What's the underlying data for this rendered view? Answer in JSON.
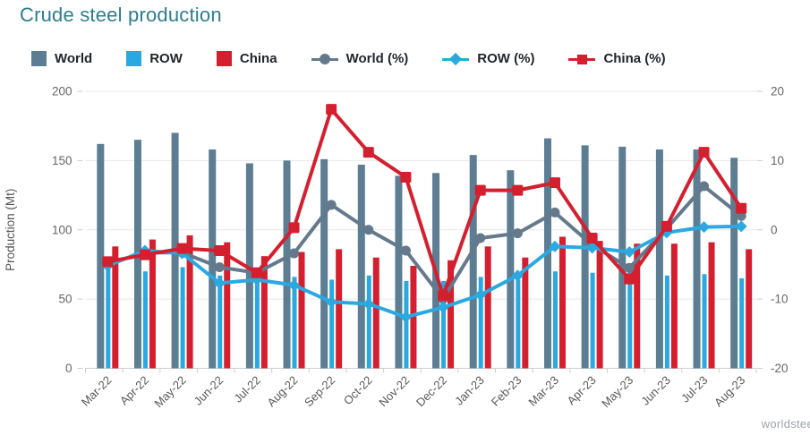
{
  "title": "Crude steel production",
  "watermark": "worldstee",
  "legend": [
    {
      "label": "World",
      "type": "square",
      "color": "#5d7d92"
    },
    {
      "label": "ROW",
      "type": "square",
      "color": "#2aa9e0"
    },
    {
      "label": "China",
      "type": "square",
      "color": "#d41f2f"
    },
    {
      "label": "World (%)",
      "type": "line-circle",
      "color": "#64798b"
    },
    {
      "label": "ROW (%)",
      "type": "line-diamond",
      "color": "#2aa9e0"
    },
    {
      "label": "China (%)",
      "type": "line-square",
      "color": "#d41f2f"
    }
  ],
  "chart_data": {
    "type": "bar",
    "subtype": "bar-line-combo",
    "title": "Crude steel production",
    "categories": [
      "Mar-22",
      "Apr-22",
      "May-22",
      "Jun-22",
      "Jul-22",
      "Aug-22",
      "Sep-22",
      "Oct-22",
      "Nov-22",
      "Dec-22",
      "Jan-23",
      "Feb-23",
      "Mar-23",
      "Apr-23",
      "May-23",
      "Jun-23",
      "Jul-23",
      "Aug-23"
    ],
    "bar_series": [
      {
        "name": "World",
        "color": "#5d7d92",
        "axis": "left",
        "values": [
          162,
          165,
          170,
          158,
          148,
          150,
          151,
          147,
          139,
          141,
          154,
          143,
          166,
          161,
          160,
          158,
          158,
          152
        ]
      },
      {
        "name": "ROW",
        "color": "#2aa9e0",
        "axis": "left",
        "values": [
          73,
          70,
          73,
          67,
          66,
          66,
          64,
          67,
          63,
          63,
          66,
          64,
          70,
          69,
          71,
          67,
          68,
          65
        ]
      },
      {
        "name": "China",
        "color": "#d41f2f",
        "axis": "left",
        "values": [
          88,
          93,
          96,
          91,
          81,
          84,
          86,
          80,
          74,
          78,
          88,
          80,
          95,
          92,
          90,
          90,
          91,
          86
        ]
      }
    ],
    "line_series": [
      {
        "name": "World (%)",
        "color": "#64798b",
        "marker": "circle",
        "axis": "right",
        "values": [
          -4.9,
          -3.3,
          -3.3,
          -5.4,
          -6.2,
          -3.4,
          3.6,
          0.0,
          -3.0,
          -10.0,
          -1.2,
          -0.5,
          2.5,
          -2.2,
          -5.5,
          0.2,
          6.3,
          2.0
        ]
      },
      {
        "name": "ROW (%)",
        "color": "#2aa9e0",
        "marker": "diamond",
        "axis": "right",
        "values": [
          -5.2,
          -3.0,
          -3.4,
          -7.7,
          -7.2,
          -8.0,
          -10.4,
          -10.7,
          -12.6,
          -11.2,
          -9.4,
          -6.6,
          -2.4,
          -2.6,
          -3.2,
          -0.4,
          0.4,
          0.5
        ]
      },
      {
        "name": "China (%)",
        "color": "#d41f2f",
        "marker": "square",
        "axis": "right",
        "values": [
          -4.6,
          -3.6,
          -2.7,
          -3.0,
          -6.2,
          0.3,
          17.4,
          11.2,
          7.6,
          -9.5,
          5.7,
          5.7,
          6.8,
          -1.2,
          -7.1,
          0.5,
          11.2,
          3.1
        ]
      }
    ],
    "left_axis": {
      "title": "Production (Mt)",
      "min": 0,
      "max": 200,
      "ticks": [
        200,
        150,
        100,
        50,
        0
      ]
    },
    "right_axis": {
      "title": "",
      "min": -20,
      "max": 20,
      "ticks": [
        20,
        10,
        0,
        -10,
        -20
      ]
    },
    "grid": "horizontal",
    "legend_position": "top"
  }
}
